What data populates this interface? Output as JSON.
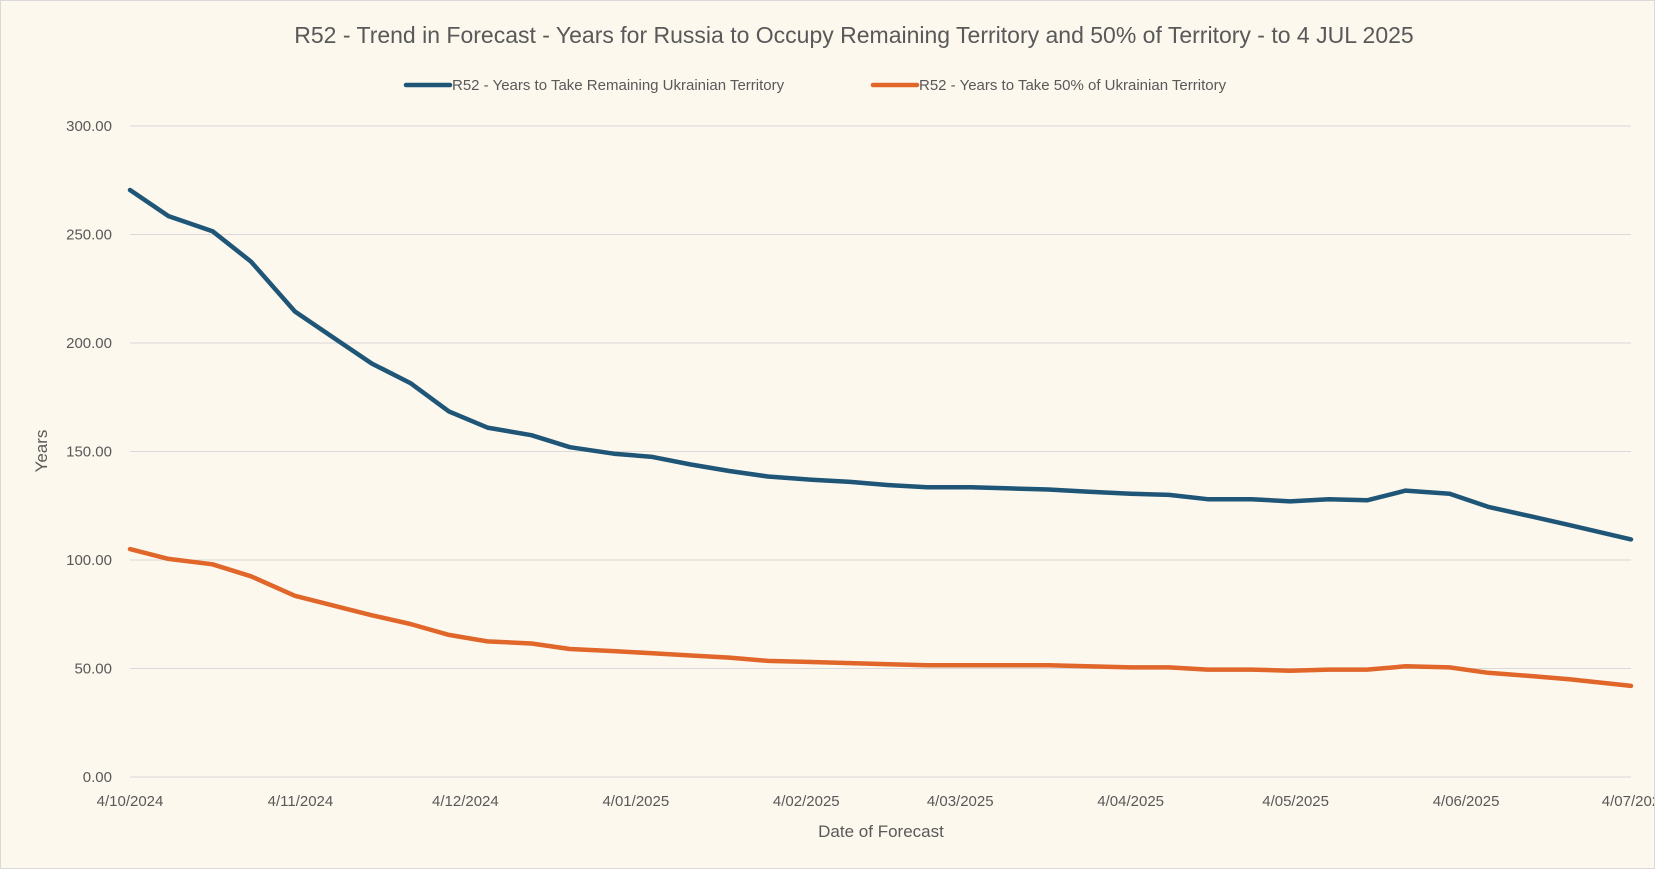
{
  "chart_data": {
    "type": "line",
    "title": "R52 - Trend in Forecast - Years for Russia to Occupy Remaining Territory and 50% of Territory - to 4 JUL 2025",
    "xlabel": "Date of Forecast",
    "ylabel": "Years",
    "ylim": [
      0,
      300
    ],
    "yticks": [
      "0.00",
      "50.00",
      "100.00",
      "150.00",
      "200.00",
      "250.00",
      "300.00"
    ],
    "xticks": [
      "4/10/2024",
      "4/11/2024",
      "4/12/2024",
      "4/01/2025",
      "4/02/2025",
      "4/03/2025",
      "4/04/2025",
      "4/05/2025",
      "4/06/2025",
      "4/07/202"
    ],
    "xtick_index": [
      0,
      31,
      61,
      92,
      123,
      151,
      182,
      212,
      243,
      273
    ],
    "x_range_index": [
      0,
      273
    ],
    "grid": true,
    "legend_position": "top",
    "colors": {
      "series1": "#1f5577",
      "series2": "#e0662a",
      "grid": "#d9d9d9",
      "text": "#595959",
      "background": "#fdf8ee"
    },
    "x_index": [
      0,
      7,
      15,
      22,
      30,
      37,
      44,
      51,
      58,
      65,
      73,
      80,
      88,
      95,
      102,
      109,
      116,
      124,
      131,
      138,
      145,
      153,
      160,
      167,
      174,
      182,
      189,
      196,
      204,
      211,
      218,
      225,
      232,
      240,
      247,
      255,
      262,
      273
    ],
    "series": [
      {
        "name": "R52 - Years to Take Remaining Ukrainian Territory",
        "values": [
          270.5,
          258.5,
          251.5,
          237.5,
          214.5,
          202.5,
          190.5,
          181.5,
          168.5,
          161,
          157.5,
          152,
          149,
          147.5,
          144,
          141,
          138.5,
          137,
          136,
          134.5,
          133.5,
          133.5,
          133,
          132.5,
          131.5,
          130.5,
          130,
          128,
          128,
          127,
          128,
          127.5,
          132,
          130.5,
          124.5,
          120,
          116,
          109.5
        ]
      },
      {
        "name": "R52 - Years to Take  50% of Ukrainian Territory",
        "values": [
          105,
          100.5,
          98,
          92.5,
          83.5,
          79,
          74.5,
          70.5,
          65.5,
          62.5,
          61.5,
          59,
          58,
          57,
          56,
          55,
          53.5,
          53,
          52.5,
          52,
          51.5,
          51.5,
          51.5,
          51.5,
          51,
          50.5,
          50.5,
          49.5,
          49.5,
          49,
          49.5,
          49.5,
          51,
          50.5,
          48,
          46.5,
          45,
          42
        ]
      }
    ]
  }
}
